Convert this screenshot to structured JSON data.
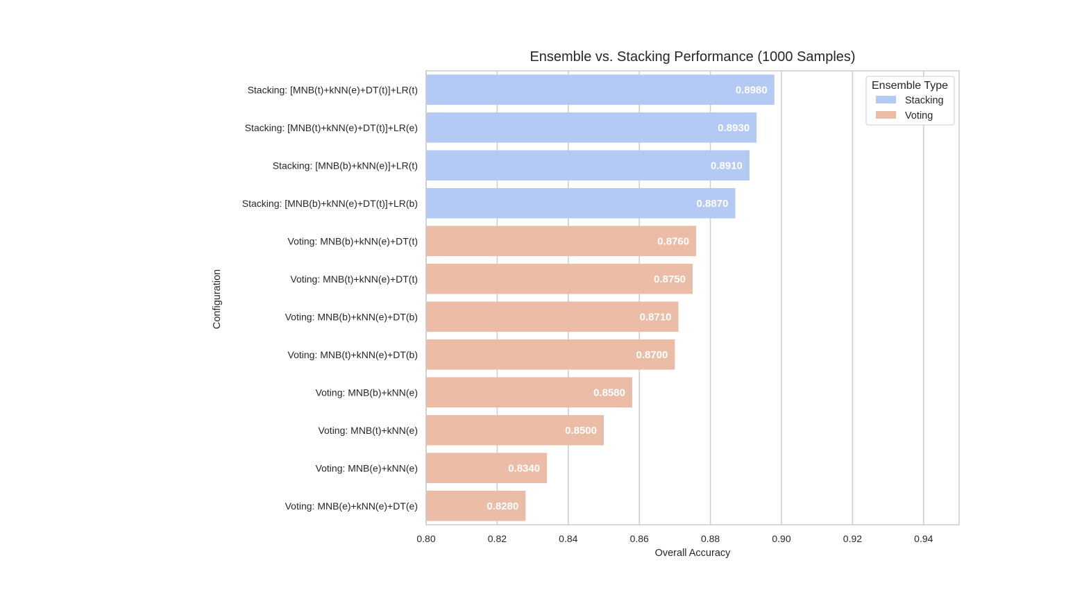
{
  "chart_data": {
    "type": "bar",
    "orientation": "horizontal",
    "title": "Ensemble vs. Stacking Performance (1000 Samples)",
    "xlabel": "Overall Accuracy",
    "ylabel": "Configuration",
    "xlim": [
      0.8,
      0.95
    ],
    "xticks": [
      "0.80",
      "0.82",
      "0.84",
      "0.86",
      "0.88",
      "0.90",
      "0.92",
      "0.94"
    ],
    "grid": true,
    "legend": {
      "title": "Ensemble Type",
      "placement": "top-right",
      "entries": [
        {
          "name": "Stacking",
          "color": "#b4c9f4"
        },
        {
          "name": "Voting",
          "color": "#ecbda6"
        }
      ]
    },
    "categories": [
      "Stacking: [MNB(t)+kNN(e)+DT(t)]+LR(t)",
      "Stacking: [MNB(t)+kNN(e)+DT(t)]+LR(e)",
      "Stacking: [MNB(b)+kNN(e)]+LR(t)",
      "Stacking: [MNB(b)+kNN(e)+DT(t)]+LR(b)",
      "Voting: MNB(b)+kNN(e)+DT(t)",
      "Voting: MNB(t)+kNN(e)+DT(t)",
      "Voting: MNB(b)+kNN(e)+DT(b)",
      "Voting: MNB(t)+kNN(e)+DT(b)",
      "Voting: MNB(b)+kNN(e)",
      "Voting: MNB(t)+kNN(e)",
      "Voting: MNB(e)+kNN(e)",
      "Voting: MNB(e)+kNN(e)+DT(e)"
    ],
    "values": [
      0.898,
      0.893,
      0.891,
      0.887,
      0.876,
      0.875,
      0.871,
      0.87,
      0.858,
      0.85,
      0.834,
      0.828
    ],
    "value_labels": [
      "0.8980",
      "0.8930",
      "0.8910",
      "0.8870",
      "0.8760",
      "0.8750",
      "0.8710",
      "0.8700",
      "0.8580",
      "0.8500",
      "0.8340",
      "0.8280"
    ],
    "groups": [
      "Stacking",
      "Stacking",
      "Stacking",
      "Stacking",
      "Voting",
      "Voting",
      "Voting",
      "Voting",
      "Voting",
      "Voting",
      "Voting",
      "Voting"
    ]
  }
}
